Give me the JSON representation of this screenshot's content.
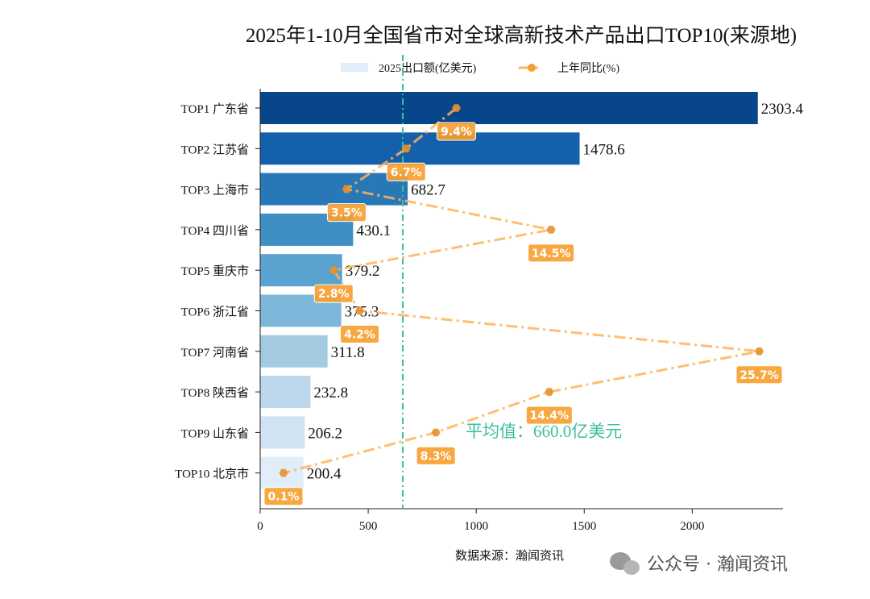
{
  "chart_data": {
    "type": "bar",
    "orientation": "horizontal",
    "title": "2025年1-10月全国省市对全球高新技术产品出口TOP10(来源地)",
    "categories": [
      "TOP1 广东省",
      "TOP2 江苏省",
      "TOP3 上海市",
      "TOP4 四川省",
      "TOP5 重庆市",
      "TOP6 浙江省",
      "TOP7 河南省",
      "TOP8 陕西省",
      "TOP9 山东省",
      "TOP10 北京市"
    ],
    "series": [
      {
        "name": "2025出口额(亿美元)",
        "type": "bar",
        "values": [
          2303.4,
          1478.6,
          682.7,
          430.1,
          379.2,
          375.3,
          311.8,
          232.8,
          206.2,
          200.4
        ],
        "colors": [
          "#08468b",
          "#1460aa",
          "#2878b8",
          "#3f8fc5",
          "#5aa2cf",
          "#7db8da",
          "#a2cbe2",
          "#bdd7ec",
          "#d1e2f3",
          "#e1edf8"
        ]
      },
      {
        "name": "上年同比(%)",
        "type": "line",
        "values": [
          9.4,
          6.7,
          3.5,
          14.5,
          2.8,
          4.2,
          25.7,
          14.4,
          8.3,
          0.1
        ],
        "labels": [
          "9.4%",
          "6.7%",
          "3.5%",
          "14.5%",
          "2.8%",
          "4.2%",
          "25.7%",
          "14.4%",
          "8.3%",
          "0.1%"
        ],
        "color": "#ffb35a",
        "label_color": "#f7a031",
        "marker": "hexagon",
        "linestyle": "dash-dot"
      }
    ],
    "xlim": [
      0,
      2420
    ],
    "xticks": [
      0,
      500,
      1000,
      1500,
      2000
    ],
    "xtick_labels": [
      "0",
      "500",
      "1000",
      "1500",
      "2000"
    ],
    "average": {
      "value": 660.0,
      "label": "平均值：660.0亿美元",
      "color": "#3cbf9f"
    },
    "legend_placement": "top-center",
    "grid": false
  },
  "source": "数据来源：瀚闻资讯",
  "watermark": "公众号 · 瀚闻资讯"
}
